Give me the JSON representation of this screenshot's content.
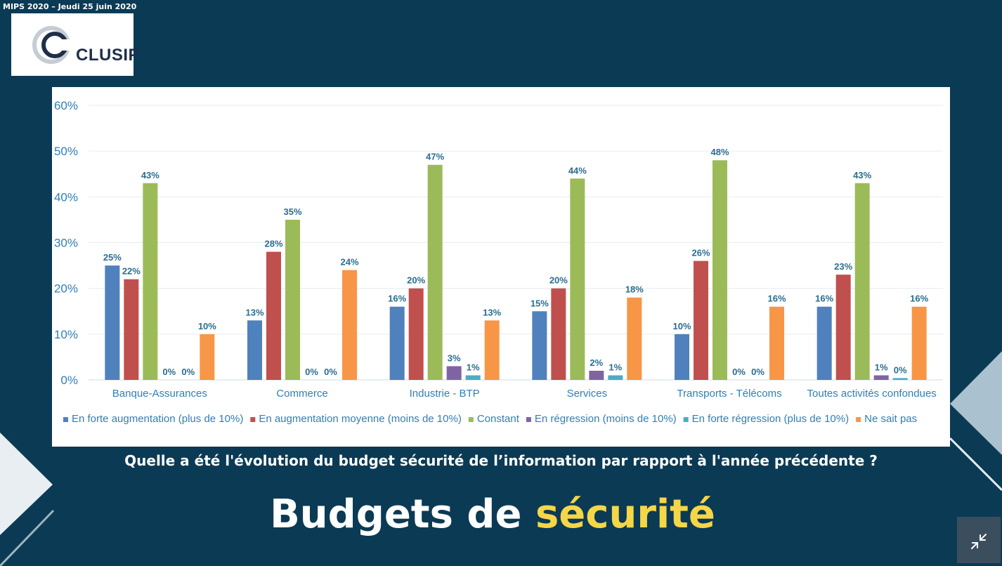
{
  "header": {
    "event_label": "MIPS 2020 – Jeudi  25 juin 2020",
    "logo_text": "CLUSIF"
  },
  "slide": {
    "question": "Quelle a été l'évolution du budget sécurité de l’information par rapport à l'année précédente ?",
    "title_part1": "Budgets de ",
    "title_part2": "sécurité"
  },
  "colors": {
    "background": "#0b3a55",
    "title_accent": "#f5d648",
    "tick_label": "#2f7fb7",
    "data_label": "#2b6d8f"
  },
  "icons": {
    "exit_fullscreen": "compress-arrows-icon"
  },
  "chart_data": {
    "type": "bar",
    "categories": [
      "Banque-Assurances",
      "Commerce",
      "Industrie - BTP",
      "Services",
      "Transports - Télécoms",
      "Toutes activités confondues"
    ],
    "series": [
      {
        "name": "En forte augmentation (plus de 10%)",
        "color": "#4f81bd",
        "values": [
          25,
          13,
          16,
          15,
          10,
          16
        ],
        "labels": [
          "25%",
          "13%",
          "16%",
          "15%",
          "10%",
          "16%"
        ]
      },
      {
        "name": "En augmentation moyenne (moins de 10%)",
        "color": "#c0504d",
        "values": [
          22,
          28,
          20,
          20,
          26,
          23
        ],
        "labels": [
          "22%",
          "28%",
          "20%",
          "20%",
          "26%",
          "23%"
        ]
      },
      {
        "name": "Constant",
        "color": "#9bbb59",
        "values": [
          43,
          35,
          47,
          44,
          48,
          43
        ],
        "labels": [
          "43%",
          "35%",
          "47%",
          "44%",
          "48%",
          "43%"
        ]
      },
      {
        "name": "En régression (moins de 10%)",
        "color": "#8064a2",
        "values": [
          0,
          0,
          3,
          2,
          0,
          1
        ],
        "labels": [
          "0%",
          "0%",
          "3%",
          "2%",
          "0%",
          "1%"
        ]
      },
      {
        "name": "En forte régression (plus de 10%)",
        "color": "#4bacc6",
        "values": [
          0,
          0,
          1,
          1,
          0,
          0.4
        ],
        "labels": [
          "0%",
          "0%",
          "1%",
          "1%",
          "0%",
          "0%"
        ]
      },
      {
        "name": "Ne sait pas",
        "color": "#f79646",
        "values": [
          10,
          24,
          13,
          18,
          16,
          16
        ],
        "labels": [
          "10%",
          "24%",
          "13%",
          "18%",
          "16%",
          "16%"
        ]
      }
    ],
    "yticks": [
      "0%",
      "10%",
      "20%",
      "30%",
      "40%",
      "50%",
      "60%"
    ],
    "ylim": [
      0,
      60
    ],
    "grid": true,
    "legend_position": "bottom"
  }
}
